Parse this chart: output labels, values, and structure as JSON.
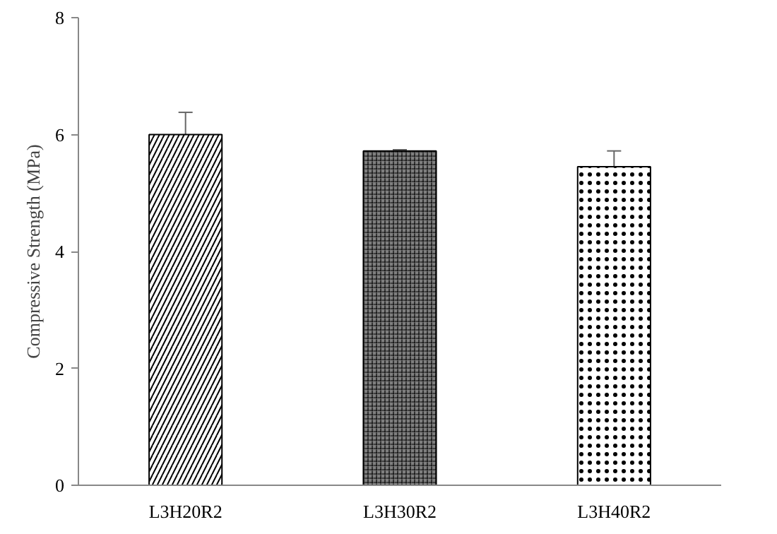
{
  "chart_data": {
    "type": "bar",
    "ylabel": "Compressive Strength (MPa)",
    "categories": [
      "L3H20R2",
      "L3H30R2",
      "L3H40R2"
    ],
    "values": [
      6.0,
      5.72,
      5.45
    ],
    "errors": [
      0.38,
      0.02,
      0.27
    ],
    "colors": [
      "#ffffff",
      "#7f7f7f",
      "#ffffff"
    ],
    "ylim": [
      0,
      8
    ],
    "yticks": [
      0,
      2,
      4,
      6,
      8
    ],
    "grid": false
  }
}
